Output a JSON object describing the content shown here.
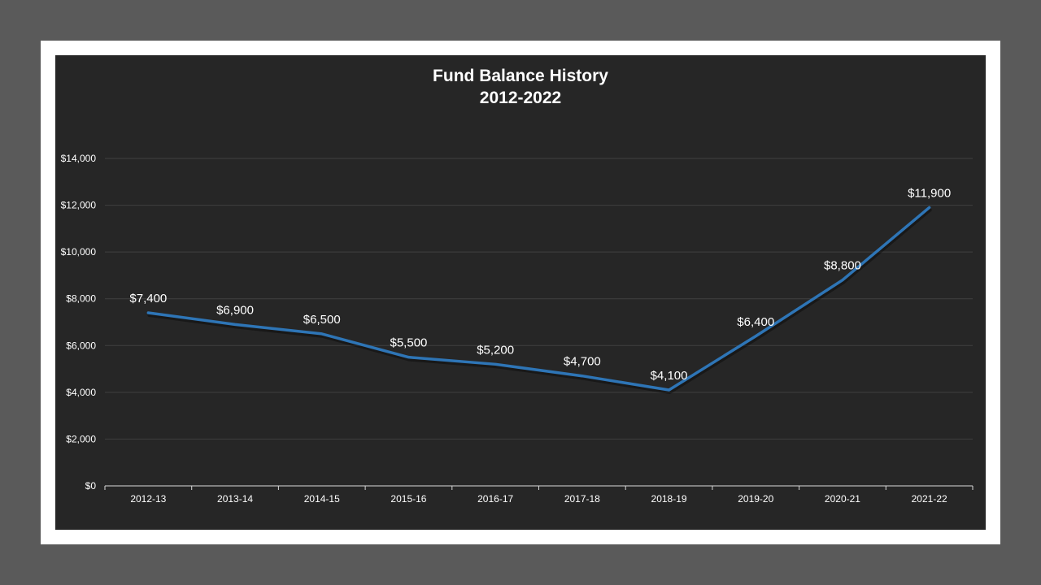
{
  "chart_data": {
    "type": "line",
    "title": "Fund Balance History",
    "subtitle": "2012-2022",
    "categories": [
      "2012-13",
      "2013-14",
      "2014-15",
      "2015-16",
      "2016-17",
      "2017-18",
      "2018-19",
      "2019-20",
      "2020-21",
      "2021-22"
    ],
    "series": [
      {
        "values": [
          7400,
          6900,
          6500,
          5500,
          5200,
          4700,
          4100,
          6400,
          8800,
          11900
        ],
        "color": "#2e75b6"
      }
    ],
    "data_labels": [
      "$7,400",
      "$6,900",
      "$6,500",
      "$5,500",
      "$5,200",
      "$4,700",
      "$4,100",
      "$6,400",
      "$8,800",
      "$11,900"
    ],
    "y_ticks": [
      0,
      2000,
      4000,
      6000,
      8000,
      10000,
      12000,
      14000
    ],
    "y_tick_labels": [
      "$0",
      "$2,000",
      "$4,000",
      "$6,000",
      "$8,000",
      "$10,000",
      "$12,000",
      "$14,000"
    ],
    "ylim": [
      0,
      14000
    ],
    "grid": true,
    "legend": "none",
    "colors": {
      "background": "#262626",
      "gridline": "#404040",
      "axis": "#d9d9d9",
      "text": "#ffffff"
    }
  }
}
